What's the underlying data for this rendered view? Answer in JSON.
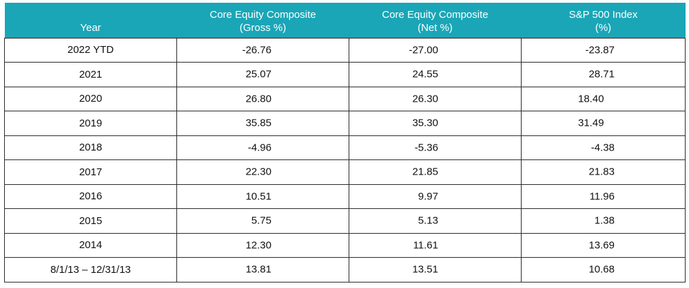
{
  "table": {
    "headers": [
      {
        "line1": "",
        "line2": "Year"
      },
      {
        "line1": "Core Equity Composite",
        "line2": "(Gross %)"
      },
      {
        "line1": "Core Equity Composite",
        "line2": "(Net %)"
      },
      {
        "line1": "S&P 500 Index",
        "line2": "(%)"
      }
    ],
    "rows": [
      {
        "year": "2022 YTD",
        "gross": "-26.76",
        "net": "-27.00",
        "sp500": "-23.87"
      },
      {
        "year": "2021",
        "gross": "25.07",
        "net": "24.55",
        "sp500": "28.71"
      },
      {
        "year": "2020",
        "gross": "26.80",
        "net": "26.30",
        "sp500": "18.40"
      },
      {
        "year": "2019",
        "gross": "35.85",
        "net": "35.30",
        "sp500": "31.49"
      },
      {
        "year": "2018",
        "gross": "-4.96",
        "net": "-5.36",
        "sp500": "-4.38"
      },
      {
        "year": "2017",
        "gross": "22.30",
        "net": "21.85",
        "sp500": "21.83"
      },
      {
        "year": "2016",
        "gross": "10.51",
        "net": "9.97",
        "sp500": "11.96"
      },
      {
        "year": "2015",
        "gross": "5.75",
        "net": "5.13",
        "sp500": "1.38"
      },
      {
        "year": "2014",
        "gross": "12.30",
        "net": "11.61",
        "sp500": "13.69"
      },
      {
        "year": "8/1/13 – 12/31/13",
        "gross": "13.81",
        "net": "13.51",
        "sp500": "10.68"
      }
    ]
  },
  "colors": {
    "header_bg": "#1aa6b7",
    "header_text": "#ffffff",
    "border": "#2a2a2a"
  }
}
